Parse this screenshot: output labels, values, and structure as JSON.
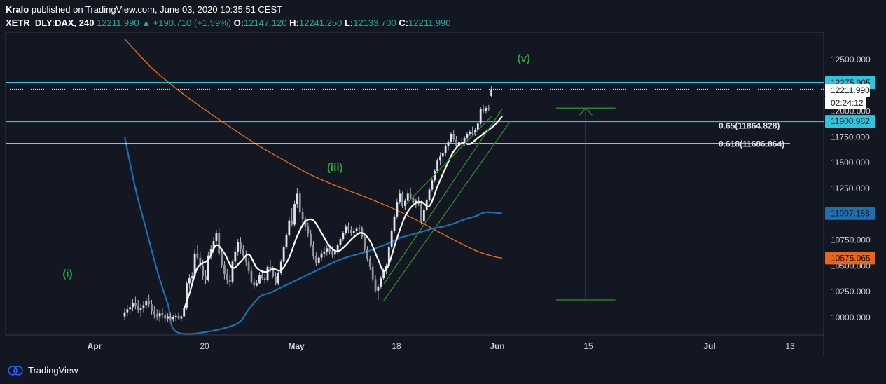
{
  "header": {
    "author": "Kralo",
    "published_text": "published on TradingView.com, June 03, 2020 10:35:51 CEST",
    "symbol": "XETR_DLY:DAX, 240",
    "last": "12211.990",
    "change": "+190.710 (+1.59%)",
    "open_label": "O:",
    "open": "12147.120",
    "high_label": "H:",
    "high": "12241.250",
    "low_label": "L:",
    "low": "12133.700",
    "close_label": "C:",
    "close": "12211.990"
  },
  "footer": {
    "brand": "TradingView"
  },
  "colors": {
    "background": "#131722",
    "candle": "#b2b5be",
    "ma_fast": "#ffffff",
    "ma_mid": "#1e6fb0",
    "ma_slow": "#e8661a",
    "horizontal_cyan": "#2fc4dc",
    "wave_label": "#2e9e3c",
    "channel": "#2e8b2e"
  },
  "chart_data": {
    "type": "candlestick",
    "symbol": "XETR_DLY:DAX",
    "interval": "240",
    "ylim": [
      9950,
      12650
    ],
    "y_ticks": [
      10000,
      10250,
      10500,
      10750,
      11000,
      11250,
      11500,
      11750,
      12000,
      12250,
      12500
    ],
    "y_tick_labels": [
      "10000.000",
      "10250.000",
      "10500.000",
      "10750.000",
      "11000.000",
      "11250.000",
      "11500.000",
      "11750.000",
      "12000.000",
      "12250.000",
      "12500.000"
    ],
    "x_ticks": [
      "Apr",
      "20",
      "May",
      "18",
      "Jun",
      "15",
      "Jul",
      "13"
    ],
    "price_badges": [
      {
        "label": "12275.905",
        "value": 12275.905,
        "color": "#2fc4dc"
      },
      {
        "label": "12211.990",
        "value": 12211.99,
        "color": "#ffffff"
      },
      {
        "label": "02:24:12",
        "value": 12140,
        "color": "#ffffff"
      },
      {
        "label": "11900.982",
        "value": 11900.982,
        "color": "#2fc4dc"
      },
      {
        "label": "11007.188",
        "value": 11007.188,
        "color": "#1e6fb0"
      },
      {
        "label": "10575.065",
        "value": 10575.065,
        "color": "#e8661a"
      }
    ],
    "horizontal_lines": [
      {
        "value": 12275.905,
        "style": "cyan"
      },
      {
        "value": 12211.99,
        "style": "dotted-white"
      },
      {
        "value": 11900.982,
        "style": "cyan"
      },
      {
        "value": 11864.828,
        "style": "white",
        "label": "0.65(11864.828)"
      },
      {
        "value": 11686.864,
        "style": "white",
        "label": "0.618(11686.864)"
      }
    ],
    "wave_labels": [
      {
        "text": "(i)",
        "bar": 10,
        "value": 10390
      },
      {
        "text": "(iii)",
        "bar": 78,
        "value": 11420
      },
      {
        "text": "(v)",
        "bar": 148,
        "value": 12480
      }
    ],
    "projection": {
      "top": 12030,
      "bottom": 10170,
      "start_bar": 160,
      "end_bar": 182
    },
    "ohlc": [
      [
        10010,
        10090,
        9980,
        10050
      ],
      [
        10050,
        10120,
        10010,
        10080
      ],
      [
        10080,
        10150,
        10030,
        10100
      ],
      [
        10100,
        10180,
        10060,
        10140
      ],
      [
        10140,
        10200,
        10080,
        10110
      ],
      [
        10110,
        10170,
        10040,
        10070
      ],
      [
        10070,
        10130,
        10000,
        10090
      ],
      [
        10090,
        10160,
        10050,
        10120
      ],
      [
        10120,
        10190,
        10080,
        10160
      ],
      [
        10160,
        10220,
        10100,
        10130
      ],
      [
        10130,
        10170,
        10030,
        10060
      ],
      [
        10060,
        10110,
        9990,
        10030
      ],
      [
        10030,
        10080,
        9970,
        10010
      ],
      [
        10010,
        10070,
        9960,
        10040
      ],
      [
        10040,
        10090,
        9990,
        10020
      ],
      [
        10020,
        10060,
        9960,
        9990
      ],
      [
        9990,
        10040,
        9960,
        10010
      ],
      [
        10010,
        10050,
        9970,
        9985
      ],
      [
        9985,
        10020,
        9960,
        10000
      ],
      [
        10000,
        10040,
        9965,
        10015
      ],
      [
        10015,
        10050,
        9975,
        9990
      ],
      [
        9990,
        10030,
        9965,
        10010
      ],
      [
        10010,
        10110,
        10000,
        10090
      ],
      [
        10090,
        10350,
        10070,
        10330
      ],
      [
        10330,
        10420,
        10280,
        10380
      ],
      [
        10380,
        10440,
        10320,
        10400
      ],
      [
        10400,
        10660,
        10380,
        10620
      ],
      [
        10620,
        10700,
        10560,
        10580
      ],
      [
        10580,
        10640,
        10470,
        10500
      ],
      [
        10500,
        10560,
        10360,
        10400
      ],
      [
        10400,
        10460,
        10320,
        10360
      ],
      [
        10360,
        10640,
        10340,
        10600
      ],
      [
        10600,
        10700,
        10560,
        10660
      ],
      [
        10660,
        10780,
        10620,
        10740
      ],
      [
        10740,
        10850,
        10700,
        10820
      ],
      [
        10820,
        10860,
        10600,
        10620
      ],
      [
        10620,
        10660,
        10480,
        10510
      ],
      [
        10510,
        10550,
        10370,
        10420
      ],
      [
        10420,
        10470,
        10320,
        10360
      ],
      [
        10360,
        10410,
        10300,
        10340
      ],
      [
        10340,
        10560,
        10320,
        10540
      ],
      [
        10540,
        10680,
        10500,
        10640
      ],
      [
        10640,
        10760,
        10600,
        10730
      ],
      [
        10730,
        10780,
        10620,
        10660
      ],
      [
        10660,
        10700,
        10560,
        10600
      ],
      [
        10600,
        10650,
        10500,
        10540
      ],
      [
        10540,
        10580,
        10420,
        10450
      ],
      [
        10450,
        10490,
        10320,
        10340
      ],
      [
        10340,
        10380,
        10280,
        10310
      ],
      [
        10310,
        10360,
        10300,
        10330
      ],
      [
        10330,
        10440,
        10320,
        10410
      ],
      [
        10410,
        10460,
        10360,
        10380
      ],
      [
        10380,
        10420,
        10330,
        10360
      ],
      [
        10360,
        10510,
        10340,
        10490
      ],
      [
        10490,
        10560,
        10440,
        10470
      ],
      [
        10470,
        10500,
        10380,
        10400
      ],
      [
        10400,
        10440,
        10310,
        10330
      ],
      [
        10330,
        10450,
        10310,
        10430
      ],
      [
        10430,
        10560,
        10410,
        10540
      ],
      [
        10540,
        10700,
        10520,
        10680
      ],
      [
        10680,
        10820,
        10660,
        10800
      ],
      [
        10800,
        10970,
        10780,
        10940
      ],
      [
        10940,
        11060,
        10880,
        10900
      ],
      [
        10900,
        11130,
        10880,
        11100
      ],
      [
        11100,
        11250,
        11060,
        11200
      ],
      [
        11200,
        11230,
        11000,
        11020
      ],
      [
        11020,
        11060,
        10900,
        10950
      ],
      [
        10950,
        10980,
        10840,
        10880
      ],
      [
        10880,
        10920,
        10780,
        10810
      ],
      [
        10810,
        10850,
        10680,
        10700
      ],
      [
        10700,
        10740,
        10560,
        10590
      ],
      [
        10590,
        10630,
        10500,
        10530
      ],
      [
        10530,
        10600,
        10510,
        10580
      ],
      [
        10580,
        10650,
        10550,
        10620
      ],
      [
        10620,
        10680,
        10580,
        10640
      ],
      [
        10640,
        10700,
        10600,
        10670
      ],
      [
        10670,
        10710,
        10610,
        10640
      ],
      [
        10640,
        10690,
        10580,
        10610
      ],
      [
        10610,
        10660,
        10570,
        10630
      ],
      [
        10630,
        10720,
        10610,
        10700
      ],
      [
        10700,
        10780,
        10680,
        10760
      ],
      [
        10760,
        10840,
        10740,
        10820
      ],
      [
        10820,
        10900,
        10800,
        10880
      ],
      [
        10880,
        10920,
        10820,
        10850
      ],
      [
        10850,
        10890,
        10790,
        10820
      ],
      [
        10820,
        10870,
        10780,
        10840
      ],
      [
        10840,
        10880,
        10800,
        10860
      ],
      [
        10860,
        10900,
        10820,
        10870
      ],
      [
        10870,
        10890,
        10760,
        10780
      ],
      [
        10780,
        10800,
        10640,
        10660
      ],
      [
        10660,
        10690,
        10540,
        10570
      ],
      [
        10570,
        10600,
        10460,
        10490
      ],
      [
        10490,
        10520,
        10340,
        10370
      ],
      [
        10370,
        10410,
        10240,
        10260
      ],
      [
        10260,
        10320,
        10170,
        10300
      ],
      [
        10300,
        10400,
        10280,
        10380
      ],
      [
        10380,
        10480,
        10360,
        10460
      ],
      [
        10460,
        10520,
        10420,
        10500
      ],
      [
        10500,
        10700,
        10480,
        10680
      ],
      [
        10680,
        10860,
        10660,
        10840
      ],
      [
        10840,
        11000,
        10820,
        10980
      ],
      [
        10980,
        11150,
        10960,
        11120
      ],
      [
        11120,
        11240,
        11100,
        11200
      ],
      [
        11200,
        11220,
        11060,
        11080
      ],
      [
        11080,
        11150,
        11040,
        11130
      ],
      [
        11130,
        11240,
        11100,
        11200
      ],
      [
        11200,
        11260,
        11140,
        11160
      ],
      [
        11160,
        11190,
        11080,
        11110
      ],
      [
        11110,
        11150,
        11060,
        11130
      ],
      [
        11130,
        11170,
        11080,
        11100
      ],
      [
        11100,
        11130,
        10900,
        10930
      ],
      [
        10930,
        11060,
        10910,
        11040
      ],
      [
        11040,
        11160,
        11020,
        11140
      ],
      [
        11140,
        11260,
        11120,
        11240
      ],
      [
        11240,
        11350,
        11220,
        11330
      ],
      [
        11330,
        11440,
        11310,
        11420
      ],
      [
        11420,
        11540,
        11400,
        11520
      ],
      [
        11520,
        11600,
        11480,
        11560
      ],
      [
        11560,
        11620,
        11500,
        11590
      ],
      [
        11590,
        11680,
        11560,
        11660
      ],
      [
        11660,
        11720,
        11620,
        11700
      ],
      [
        11700,
        11800,
        11680,
        11780
      ],
      [
        11780,
        11820,
        11700,
        11730
      ],
      [
        11730,
        11760,
        11640,
        11660
      ],
      [
        11660,
        11720,
        11620,
        11700
      ],
      [
        11700,
        11740,
        11650,
        11690
      ],
      [
        11690,
        11760,
        11660,
        11740
      ],
      [
        11740,
        11800,
        11720,
        11780
      ],
      [
        11780,
        11820,
        11760,
        11800
      ],
      [
        11800,
        11850,
        11760,
        11780
      ],
      [
        11780,
        11840,
        11760,
        11820
      ],
      [
        11820,
        11900,
        11800,
        11880
      ],
      [
        11880,
        12040,
        11860,
        12020
      ],
      [
        12020,
        12060,
        11980,
        12000
      ],
      [
        12000,
        12050,
        11980,
        12030
      ],
      [
        12030,
        12060,
        12000,
        12020
      ],
      [
        12147.12,
        12241.25,
        12133.7,
        12211.99
      ]
    ],
    "ma_fast_anchors": [
      [
        22,
        10080
      ],
      [
        24,
        10230
      ],
      [
        27,
        10480
      ],
      [
        31,
        10560
      ],
      [
        34,
        10700
      ],
      [
        37,
        10620
      ],
      [
        40,
        10480
      ],
      [
        43,
        10540
      ],
      [
        46,
        10610
      ],
      [
        49,
        10480
      ],
      [
        52,
        10440
      ],
      [
        55,
        10470
      ],
      [
        58,
        10460
      ],
      [
        61,
        10580
      ],
      [
        64,
        10790
      ],
      [
        67,
        10930
      ],
      [
        70,
        10940
      ],
      [
        73,
        10820
      ],
      [
        76,
        10690
      ],
      [
        79,
        10640
      ],
      [
        82,
        10700
      ],
      [
        85,
        10780
      ],
      [
        88,
        10820
      ],
      [
        91,
        10740
      ],
      [
        94,
        10560
      ],
      [
        96,
        10450
      ],
      [
        98,
        10520
      ],
      [
        101,
        10770
      ],
      [
        104,
        10980
      ],
      [
        107,
        11090
      ],
      [
        110,
        11120
      ],
      [
        113,
        11080
      ],
      [
        116,
        11270
      ],
      [
        119,
        11450
      ],
      [
        122,
        11610
      ],
      [
        125,
        11690
      ],
      [
        128,
        11680
      ],
      [
        131,
        11740
      ],
      [
        134,
        11800
      ],
      [
        137,
        11860
      ],
      [
        140,
        11950
      ]
    ],
    "ma_mid_anchors": [
      [
        0,
        11750
      ],
      [
        4,
        11250
      ],
      [
        8,
        10850
      ],
      [
        12,
        10460
      ],
      [
        16,
        10130
      ],
      [
        20,
        9850
      ],
      [
        40,
        9920
      ],
      [
        46,
        10080
      ],
      [
        50,
        10200
      ],
      [
        54,
        10240
      ],
      [
        58,
        10290
      ],
      [
        62,
        10340
      ],
      [
        66,
        10390
      ],
      [
        70,
        10440
      ],
      [
        74,
        10490
      ],
      [
        78,
        10540
      ],
      [
        82,
        10580
      ],
      [
        86,
        10610
      ],
      [
        90,
        10640
      ],
      [
        94,
        10680
      ],
      [
        98,
        10720
      ],
      [
        102,
        10770
      ],
      [
        106,
        10800
      ],
      [
        110,
        10830
      ],
      [
        114,
        10860
      ],
      [
        118,
        10880
      ],
      [
        122,
        10910
      ],
      [
        126,
        10950
      ],
      [
        130,
        10980
      ],
      [
        134,
        11020
      ],
      [
        140,
        11007.188
      ]
    ],
    "ma_slow_anchors": [
      [
        0,
        12700
      ],
      [
        10,
        12420
      ],
      [
        20,
        12200
      ],
      [
        30,
        12010
      ],
      [
        40,
        11830
      ],
      [
        50,
        11660
      ],
      [
        60,
        11510
      ],
      [
        70,
        11370
      ],
      [
        80,
        11260
      ],
      [
        90,
        11160
      ],
      [
        100,
        11050
      ],
      [
        110,
        10920
      ],
      [
        120,
        10780
      ],
      [
        130,
        10650
      ],
      [
        137,
        10590
      ],
      [
        140,
        10575.065
      ]
    ],
    "channel_lines": [
      [
        [
          96,
          10320
        ],
        [
          140,
          12020
        ]
      ],
      [
        [
          96,
          10160
        ],
        [
          143,
          11900
        ]
      ],
      [
        [
          104,
          11090
        ],
        [
          136,
          11950
        ]
      ]
    ]
  }
}
